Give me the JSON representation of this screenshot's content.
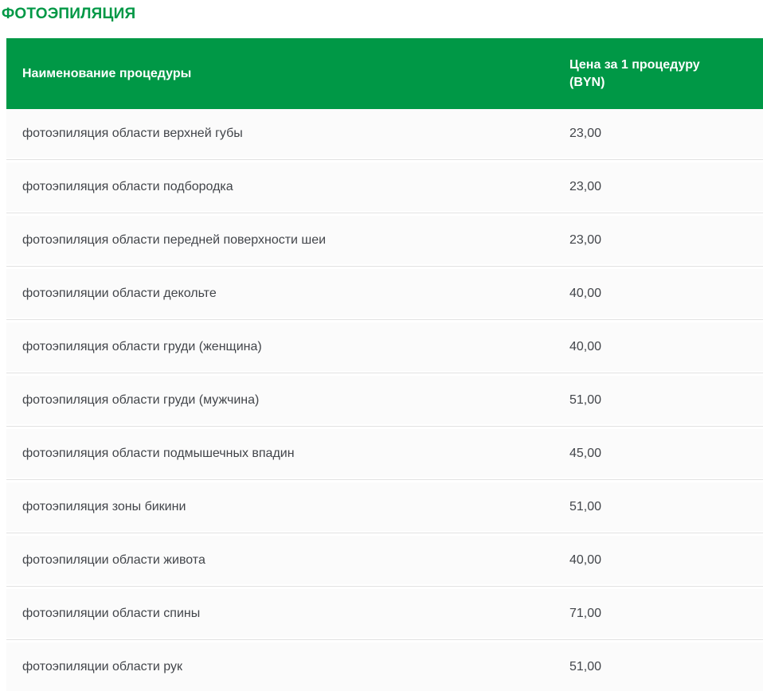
{
  "title": "ФОТОЭПИЛЯЦИЯ",
  "colors": {
    "accent_green": "#009846",
    "header_text": "#ffffff",
    "row_bg": "#fbfbfb",
    "row_text": "#42454a",
    "divider": "#e2e2e2"
  },
  "table": {
    "columns": {
      "name": "Наименование процедуры",
      "price": "Цена за 1 процедуру (BYN)"
    },
    "rows": [
      {
        "name": "фотоэпиляция области верхней губы",
        "price": "23,00"
      },
      {
        "name": "фотоэпиляция области подбородка",
        "price": "23,00"
      },
      {
        "name": "фотоэпиляция области передней поверхности шеи",
        "price": "23,00"
      },
      {
        "name": "фотоэпиляции области декольте",
        "price": "40,00"
      },
      {
        "name": "фотоэпиляция области груди (женщина)",
        "price": "40,00"
      },
      {
        "name": "фотоэпиляция области груди (мужчина)",
        "price": "51,00"
      },
      {
        "name": "фотоэпиляция области подмышечных впадин",
        "price": "45,00"
      },
      {
        "name": "фотоэпиляция зоны бикини",
        "price": "51,00"
      },
      {
        "name": "фотоэпиляции области живота",
        "price": "40,00"
      },
      {
        "name": "фотоэпиляции области спины",
        "price": "71,00"
      },
      {
        "name": "фотоэпиляции области рук",
        "price": "51,00"
      }
    ]
  }
}
